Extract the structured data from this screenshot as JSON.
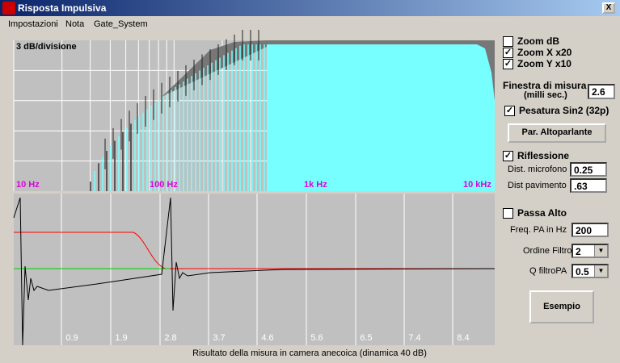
{
  "window": {
    "title": "Risposta Impulsiva",
    "close": "X"
  },
  "menu": [
    "Impostazioni",
    "Nota",
    "Gate_System"
  ],
  "spectrum": {
    "scale_label": "3 dB/divisione",
    "freq_labels": [
      "10 Hz",
      "100 Hz",
      "1k Hz",
      "10 kHz"
    ]
  },
  "impulse": {
    "time_labels": [
      "0.9",
      "1.9",
      "2.8",
      "3.7",
      "4.6",
      "5.6",
      "6.5",
      "7.4",
      "8.4"
    ],
    "caption": "Risultato della misura in camera anecoica (dinamica 40 dB)"
  },
  "controls": {
    "zoom_db": {
      "label": "Zoom dB",
      "checked": false
    },
    "zoom_x": {
      "label": "Zoom X x20",
      "checked": true
    },
    "zoom_y": {
      "label": "Zoom Y x10",
      "checked": true
    },
    "window_label": "Finestra di misura",
    "window_unit": "(milli sec.)",
    "window_value": "2.6",
    "sin2": {
      "label": "Pesatura Sin2 (32p)",
      "checked": true
    },
    "speaker_button": "Par. Altoparlante",
    "reflection": {
      "label": "Riflessione",
      "checked": true
    },
    "mic_label": "Dist. microfono",
    "mic_value": "0.25",
    "floor_label": "Dist pavimento",
    "floor_value": ".63",
    "highpass": {
      "label": "Passa Alto",
      "checked": false
    },
    "freq_label": "Freq. PA in Hz",
    "freq_value": "200",
    "order_label": "Ordine Filtro",
    "order_value": "2",
    "q_label": "Q filtroPA",
    "q_value": "0.5",
    "example_button": "Esempio"
  }
}
